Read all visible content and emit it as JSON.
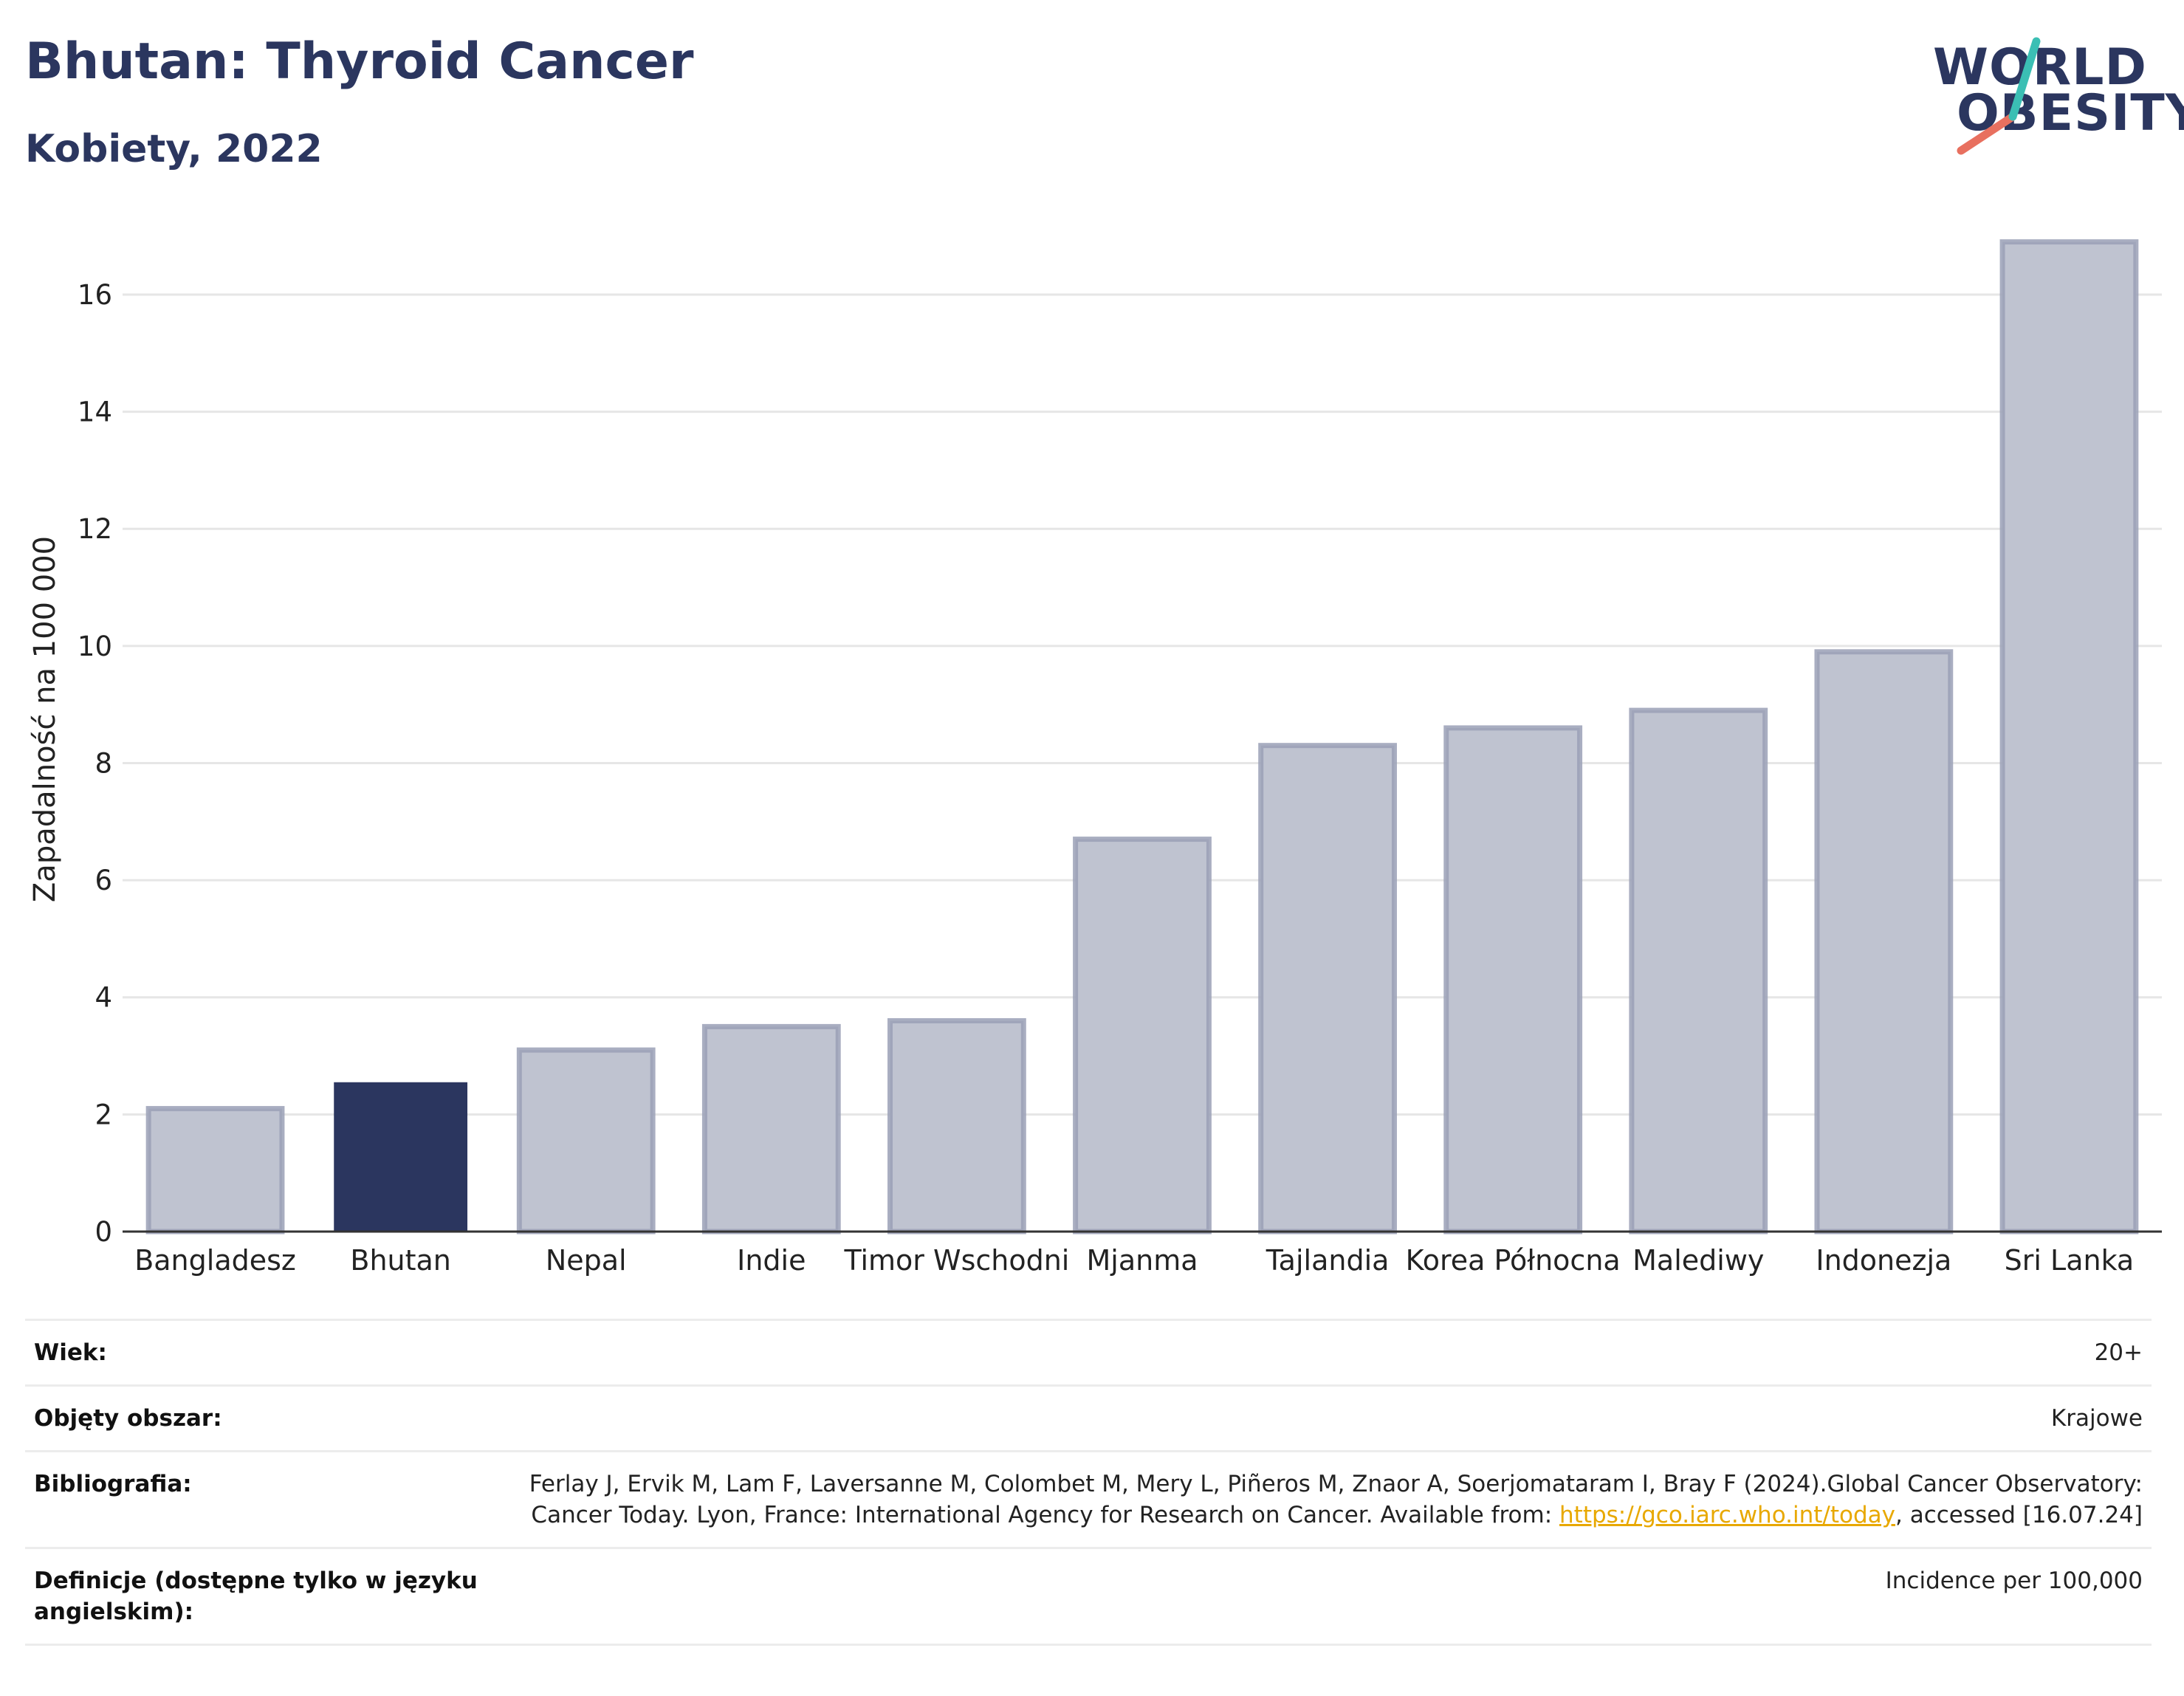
{
  "header": {
    "title": "Bhutan: Thyroid Cancer",
    "subtitle": "Kobiety, 2022"
  },
  "logo": {
    "line1": "WORLD",
    "line2": "OBESITY",
    "colors": {
      "text": "#2b365f",
      "slash_top": "#3bbfb4",
      "slash_bottom": "#e8705f"
    }
  },
  "colors": {
    "bar": "#bfc3d0",
    "bar_border": "#9aa0b6",
    "highlight": "#2b365f",
    "grid": "#e6e6e6",
    "axis": "#333333",
    "link": "#e8a800"
  },
  "chart_data": {
    "type": "bar",
    "categories": [
      "Bangladesz",
      "Bhutan",
      "Nepal",
      "Indie",
      "Timor Wschodni",
      "Mjanma",
      "Tajlandia",
      "Korea Północna",
      "Malediwy",
      "Indonezja",
      "Sri Lanka"
    ],
    "values": [
      2.1,
      2.55,
      3.1,
      3.5,
      3.6,
      6.7,
      8.3,
      8.6,
      8.9,
      9.9,
      16.9
    ],
    "highlight": "Bhutan",
    "ylabel": "Zapadalność na 100 000",
    "xlabel": "",
    "ylim": [
      0,
      17.5
    ],
    "yticks": [
      0,
      2,
      4,
      6,
      8,
      10,
      12,
      14,
      16
    ],
    "grid": true
  },
  "info": {
    "rows": [
      {
        "label": "Wiek:",
        "value": "20+"
      },
      {
        "label": "Objęty obszar:",
        "value": "Krajowe"
      },
      {
        "label": "Bibliografia:",
        "value_pre": "Ferlay J, Ervik M, Lam F, Laversanne M, Colombet M, Mery L, Piñeros M, Znaor A, Soerjomataram I, Bray F (2024).Global Cancer Observatory: Cancer Today. Lyon, France: International Agency for Research on Cancer. Available from: ",
        "link": "https://gco.iarc.who.int/today",
        "value_post": ", accessed [16.07.24]"
      },
      {
        "label": "Definicje (dostępne tylko w języku angielskim):",
        "value": "Incidence per 100,000"
      }
    ]
  }
}
